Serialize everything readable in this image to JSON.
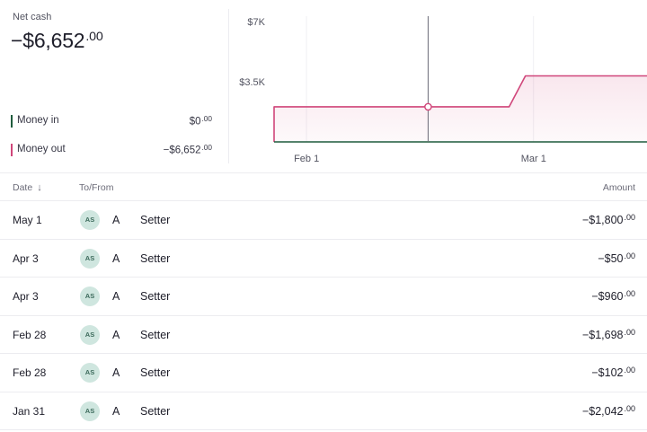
{
  "summary": {
    "net_label": "Net cash",
    "net_value": "−$6,652",
    "net_cents": ".00",
    "money_in": {
      "label": "Money in",
      "value": "$0",
      "cents": ".00",
      "color": "#1f5c3d"
    },
    "money_out": {
      "label": "Money out",
      "value": "−$6,652",
      "cents": ".00",
      "color": "#d0467a"
    }
  },
  "chart_data": {
    "type": "area",
    "title": "",
    "xlabel": "",
    "ylabel": "",
    "y_ticks": [
      "$7K",
      "$3.5K"
    ],
    "x_ticks": [
      "Feb 1",
      "Mar 1"
    ],
    "ylim": [
      0,
      7000
    ],
    "x_range": [
      "2025-01-28",
      "2025-03-15"
    ],
    "hover_date": "2025-02-16",
    "series": [
      {
        "color": "#d0467a",
        "points": [
          [
            "2025-01-28",
            0
          ],
          [
            "2025-01-28",
            2042
          ],
          [
            "2025-01-31",
            2042
          ],
          [
            "2025-02-26",
            2042
          ],
          [
            "2025-02-28",
            3842
          ],
          [
            "2025-03-15",
            3842
          ]
        ]
      },
      {
        "color": "#1f5c3d",
        "points": [
          [
            "2025-01-28",
            0
          ],
          [
            "2025-03-15",
            0
          ]
        ]
      }
    ]
  },
  "table": {
    "headers": {
      "date": "Date",
      "sort_icon": "↓",
      "to_from": "To/From",
      "amount": "Amount"
    },
    "rows": [
      {
        "date": "May 1",
        "initials": "AS",
        "first": "A",
        "last": "Setter",
        "amount": "−$1,800",
        "cents": ".00"
      },
      {
        "date": "Apr 3",
        "initials": "AS",
        "first": "A",
        "last": "Setter",
        "amount": "−$50",
        "cents": ".00"
      },
      {
        "date": "Apr 3",
        "initials": "AS",
        "first": "A",
        "last": "Setter",
        "amount": "−$960",
        "cents": ".00"
      },
      {
        "date": "Feb 28",
        "initials": "AS",
        "first": "A",
        "last": "Setter",
        "amount": "−$1,698",
        "cents": ".00"
      },
      {
        "date": "Feb 28",
        "initials": "AS",
        "first": "A",
        "last": "Setter",
        "amount": "−$102",
        "cents": ".00"
      },
      {
        "date": "Jan 31",
        "initials": "AS",
        "first": "A",
        "last": "Setter",
        "amount": "−$2,042",
        "cents": ".00"
      }
    ]
  }
}
